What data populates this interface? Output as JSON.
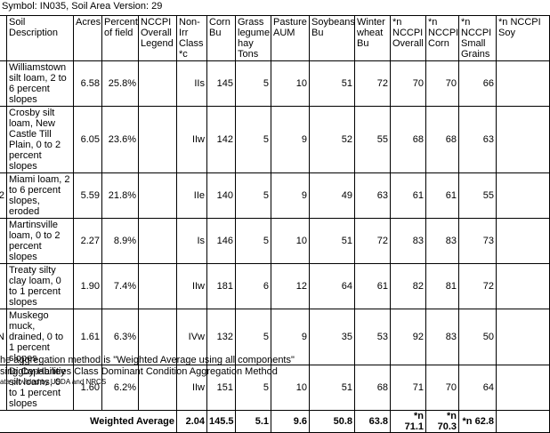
{
  "title": "Symbol: IN035, Soil Area Version: 29",
  "table": {
    "headers": [
      "Soil Description",
      "Acres",
      "Percent of field",
      "NCCPI Overall Legend",
      "Non-Irr Class *c",
      "Corn Bu",
      "Grass legume hay Tons",
      "Pasture AUM",
      "Soybeans Bu",
      "Winter wheat Bu",
      "*n NCCPI Overall",
      "*n NCCPI Corn",
      "*n NCCPI Small Grains",
      "*n NCCPI Soy"
    ],
    "rows": [
      {
        "cells": [
          "Williamstown silt loam, 2 to 6 percent slopes",
          "6.58",
          "25.8%",
          "IIs",
          "145",
          "5",
          "10",
          "51",
          "72",
          "70",
          "70",
          "66"
        ],
        "legend_color": "#ffff00"
      },
      {
        "cells": [
          "Crosby silt loam, New Castle Till Plain, 0 to 2 percent slopes",
          "6.05",
          "23.6%",
          "IIw",
          "142",
          "5",
          "9",
          "52",
          "55",
          "68",
          "68",
          "63"
        ],
        "legend_color": "#ffff00"
      },
      {
        "lead": "2",
        "cells": [
          "Miami loam, 2 to 6 percent slopes, eroded",
          "5.59",
          "21.8%",
          "IIe",
          "140",
          "5",
          "9",
          "49",
          "63",
          "61",
          "61",
          "55"
        ],
        "legend_color": "#ffff00"
      },
      {
        "cells": [
          "Martinsville loam, 0 to 2 percent slopes",
          "2.27",
          "8.9%",
          "Is",
          "146",
          "5",
          "10",
          "51",
          "72",
          "83",
          "83",
          "73"
        ],
        "legend_color": "#0a1eff"
      },
      {
        "cells": [
          "Treaty silty clay loam, 0 to 1 percent slopes",
          "1.90",
          "7.4%",
          "IIw",
          "181",
          "6",
          "12",
          "64",
          "61",
          "82",
          "81",
          "72"
        ],
        "legend_color": "#0a1eff"
      },
      {
        "lead": "N",
        "cells": [
          "Muskego muck, drained, 0 to 1 percent slopes",
          "1.61",
          "6.3%",
          "IVw",
          "132",
          "5",
          "9",
          "35",
          "53",
          "92",
          "83",
          "50"
        ],
        "legend_color": "#33e033"
      },
      {
        "cells": [
          "Digby-Haney silt loams, 0 to 1 percent slopes",
          "1.60",
          "6.2%",
          "IIw",
          "151",
          "5",
          "10",
          "51",
          "68",
          "71",
          "70",
          "64"
        ],
        "legend_color": "#ff9d10"
      }
    ],
    "summary": {
      "label": "Weighted Average",
      "values": [
        "2.04",
        "145.5",
        "5.1",
        "9.6",
        "50.8",
        "63.8",
        "*n 71.1",
        "*n 70.3",
        "*n 62.8"
      ]
    }
  },
  "notes": [
    "he aggregation method is \"Weighted Average using all components\"",
    "sing Capabilities Class Dominant Condition Aggregation Method",
    "ata provided by USDA and NRCS"
  ]
}
